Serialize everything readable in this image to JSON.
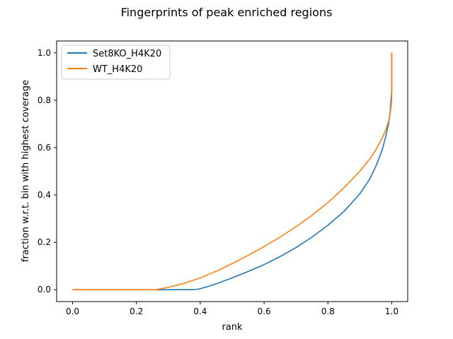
{
  "chart_data": {
    "type": "line",
    "title": "Fingerprints of peak enriched regions",
    "xlabel": "rank",
    "ylabel": "fraction w.r.t. bin with highest coverage",
    "xlim": [
      -0.05,
      1.05
    ],
    "ylim": [
      -0.05,
      1.05
    ],
    "xticks": [
      0.0,
      0.2,
      0.4,
      0.6,
      0.8,
      1.0
    ],
    "yticks": [
      0.0,
      0.2,
      0.4,
      0.6,
      0.8,
      1.0
    ],
    "xtick_labels": [
      "0.0",
      "0.2",
      "0.4",
      "0.6",
      "0.8",
      "1.0"
    ],
    "ytick_labels": [
      "0.0",
      "0.2",
      "0.4",
      "0.6",
      "0.8",
      "1.0"
    ],
    "grid": false,
    "legend": "upper-left",
    "series": [
      {
        "name": "Set8KO_H4K20",
        "color": "#1f77b4",
        "x": [
          0.0,
          0.1,
          0.2,
          0.3,
          0.38,
          0.4,
          0.42,
          0.45,
          0.5,
          0.55,
          0.6,
          0.65,
          0.7,
          0.75,
          0.8,
          0.85,
          0.9,
          0.93,
          0.95,
          0.97,
          0.98,
          0.99,
          0.995,
          1.0,
          1.0
        ],
        "y": [
          0.0,
          0.0,
          0.0,
          0.0,
          0.0,
          0.004,
          0.012,
          0.025,
          0.05,
          0.077,
          0.106,
          0.14,
          0.178,
          0.222,
          0.272,
          0.33,
          0.405,
          0.465,
          0.52,
          0.59,
          0.64,
          0.7,
          0.75,
          0.84,
          1.0
        ]
      },
      {
        "name": "WT_H4K20",
        "color": "#ff7f0e",
        "x": [
          0.0,
          0.1,
          0.2,
          0.26,
          0.3,
          0.35,
          0.4,
          0.45,
          0.5,
          0.55,
          0.6,
          0.65,
          0.7,
          0.75,
          0.8,
          0.85,
          0.9,
          0.93,
          0.95,
          0.97,
          0.98,
          0.99,
          0.995,
          1.0,
          1.0
        ],
        "y": [
          0.0,
          0.0,
          0.0,
          0.0,
          0.01,
          0.027,
          0.05,
          0.078,
          0.11,
          0.145,
          0.182,
          0.222,
          0.266,
          0.314,
          0.368,
          0.43,
          0.5,
          0.55,
          0.59,
          0.64,
          0.67,
          0.71,
          0.74,
          0.8,
          1.0
        ]
      }
    ]
  }
}
